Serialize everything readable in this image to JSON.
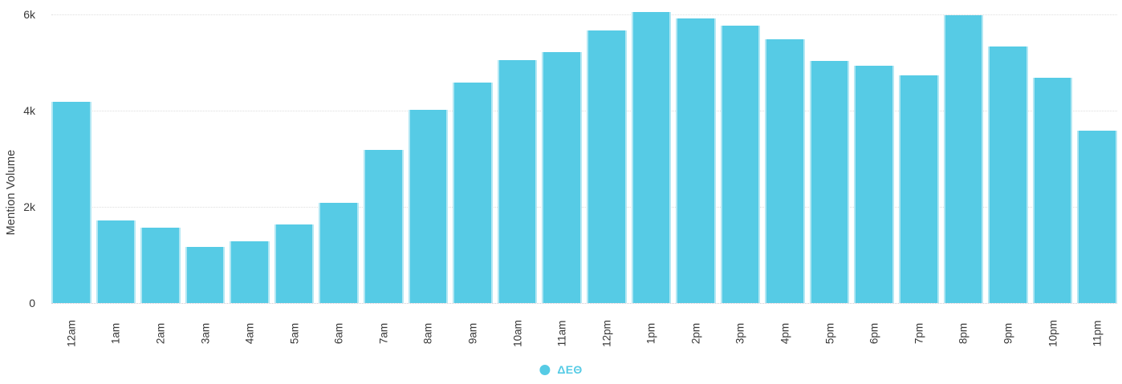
{
  "chart_data": {
    "type": "bar",
    "title": "",
    "xlabel": "",
    "ylabel": "Mention Volume",
    "series_name": "ΔΕΘ",
    "categories": [
      "12am",
      "1am",
      "2am",
      "3am",
      "4am",
      "5am",
      "6am",
      "7am",
      "8am",
      "9am",
      "10am",
      "11am",
      "12pm",
      "1pm",
      "2pm",
      "3pm",
      "4pm",
      "5pm",
      "6pm",
      "7pm",
      "8pm",
      "9pm",
      "10pm",
      "11pm"
    ],
    "values": [
      4180,
      1710,
      1560,
      1160,
      1280,
      1630,
      2090,
      3190,
      4020,
      4590,
      5050,
      5220,
      5670,
      6050,
      5920,
      5760,
      5480,
      5030,
      4930,
      4730,
      5990,
      5340,
      4690,
      3590
    ],
    "yticks": [
      {
        "value": 0,
        "label": "0"
      },
      {
        "value": 2000,
        "label": "2k"
      },
      {
        "value": 4000,
        "label": "4k"
      },
      {
        "value": 6000,
        "label": "6k"
      }
    ],
    "ylim": [
      0,
      6300
    ],
    "grid": "horizontal-dotted",
    "legend_position": "bottom-center",
    "colors": {
      "bar": "#56cbe5",
      "legend_text": "#56cbe5",
      "axis_text": "#383838",
      "gridline": "#dedede"
    }
  }
}
